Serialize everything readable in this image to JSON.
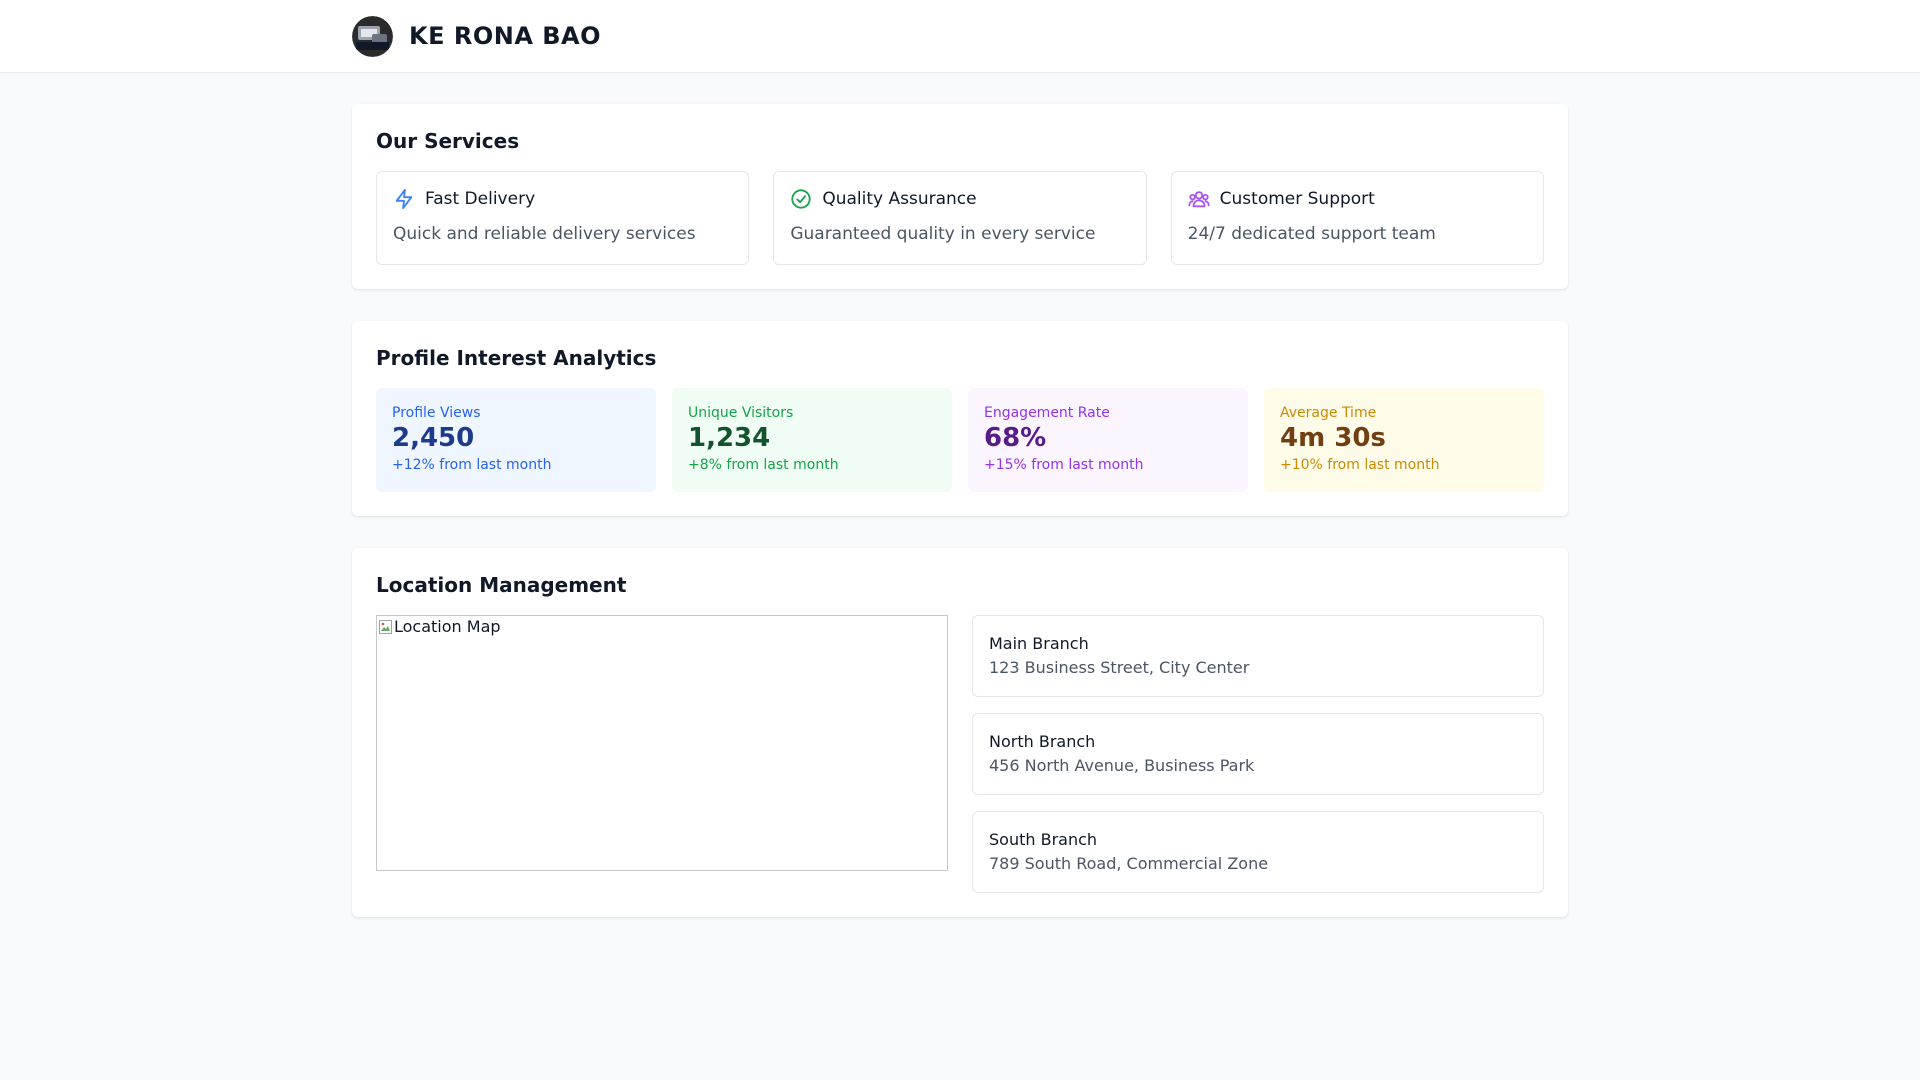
{
  "header": {
    "brand": "KE RONA BAO"
  },
  "services": {
    "title": "Our Services",
    "items": [
      {
        "icon": "lightning-icon",
        "title": "Fast Delivery",
        "description": "Quick and reliable delivery services",
        "color": "#3b82f6"
      },
      {
        "icon": "check-circle-icon",
        "title": "Quality Assurance",
        "description": "Guaranteed quality in every service",
        "color": "#16a34a"
      },
      {
        "icon": "users-icon",
        "title": "Customer Support",
        "description": "24/7 dedicated support team",
        "color": "#a855f7"
      }
    ]
  },
  "analytics": {
    "title": "Profile Interest Analytics",
    "stats": [
      {
        "label": "Profile Views",
        "value": "2,450",
        "change": "+12% from last month",
        "color": "blue"
      },
      {
        "label": "Unique Visitors",
        "value": "1,234",
        "change": "+8% from last month",
        "color": "green"
      },
      {
        "label": "Engagement Rate",
        "value": "68%",
        "change": "+15% from last month",
        "color": "purple"
      },
      {
        "label": "Average Time",
        "value": "4m 30s",
        "change": "+10% from last month",
        "color": "yellow"
      }
    ]
  },
  "locations": {
    "title": "Location Management",
    "map_alt": "Location Map",
    "branches": [
      {
        "name": "Main Branch",
        "address": "123 Business Street, City Center"
      },
      {
        "name": "North Branch",
        "address": "456 North Avenue, Business Park"
      },
      {
        "name": "South Branch",
        "address": "789 South Road, Commercial Zone"
      }
    ]
  }
}
